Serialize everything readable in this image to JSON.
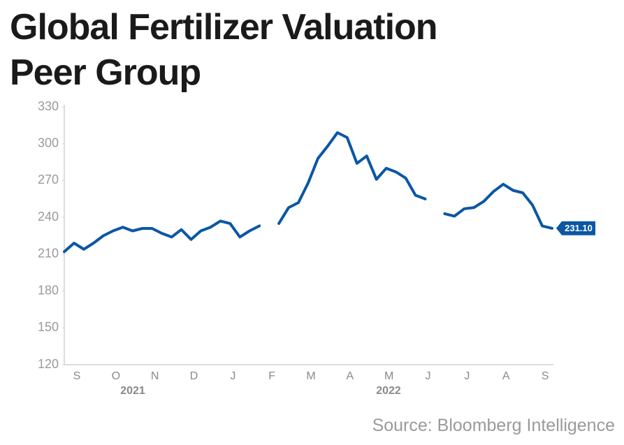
{
  "chart_data": {
    "type": "line",
    "title": [
      "Global Fertilizer Valuation",
      "Peer Group"
    ],
    "categories": [
      null,
      "S",
      null,
      null,
      null,
      "O",
      null,
      null,
      null,
      "N",
      null,
      null,
      null,
      "D",
      null,
      null,
      null,
      "J",
      null,
      null,
      null,
      "F",
      null,
      null,
      null,
      "M",
      null,
      null,
      null,
      "A",
      null,
      null,
      null,
      "M",
      null,
      null,
      null,
      "J",
      null,
      null,
      null,
      "J",
      null,
      null,
      null,
      "A",
      null,
      null,
      null,
      "S",
      null
    ],
    "years": [
      "2021",
      "2022"
    ],
    "series": [
      {
        "name": "Global Fertilizer Valuation Peer Group",
        "color": "#0b57a4",
        "values": [
          212,
          219,
          214,
          219,
          225,
          229,
          232,
          229,
          231,
          231,
          227,
          224,
          230,
          222,
          229,
          232,
          237,
          235,
          224,
          229,
          233,
          null,
          235,
          248,
          252,
          268,
          288,
          298,
          309,
          305,
          284,
          290,
          271,
          280,
          277,
          272,
          258,
          255,
          null,
          243,
          241,
          247,
          248,
          253,
          261,
          267,
          262,
          260,
          250,
          233,
          231.1
        ],
        "value_labels": [
          null,
          null,
          null,
          null,
          null,
          null,
          null,
          null,
          null,
          null,
          null,
          null,
          null,
          null,
          null,
          null,
          null,
          null,
          null,
          null,
          null,
          null,
          null,
          null,
          null,
          null,
          null,
          null,
          null,
          null,
          null,
          null,
          null,
          null,
          null,
          null,
          null,
          null,
          null,
          null,
          null,
          null,
          null,
          null,
          null,
          null,
          null,
          null,
          null,
          null,
          "231.10"
        ]
      }
    ],
    "ylim": [
      120,
      330
    ],
    "yticks": [
      120,
      150,
      180,
      210,
      240,
      270,
      300,
      330
    ],
    "grid": false,
    "source": "Source: Bloomberg Intelligence"
  }
}
